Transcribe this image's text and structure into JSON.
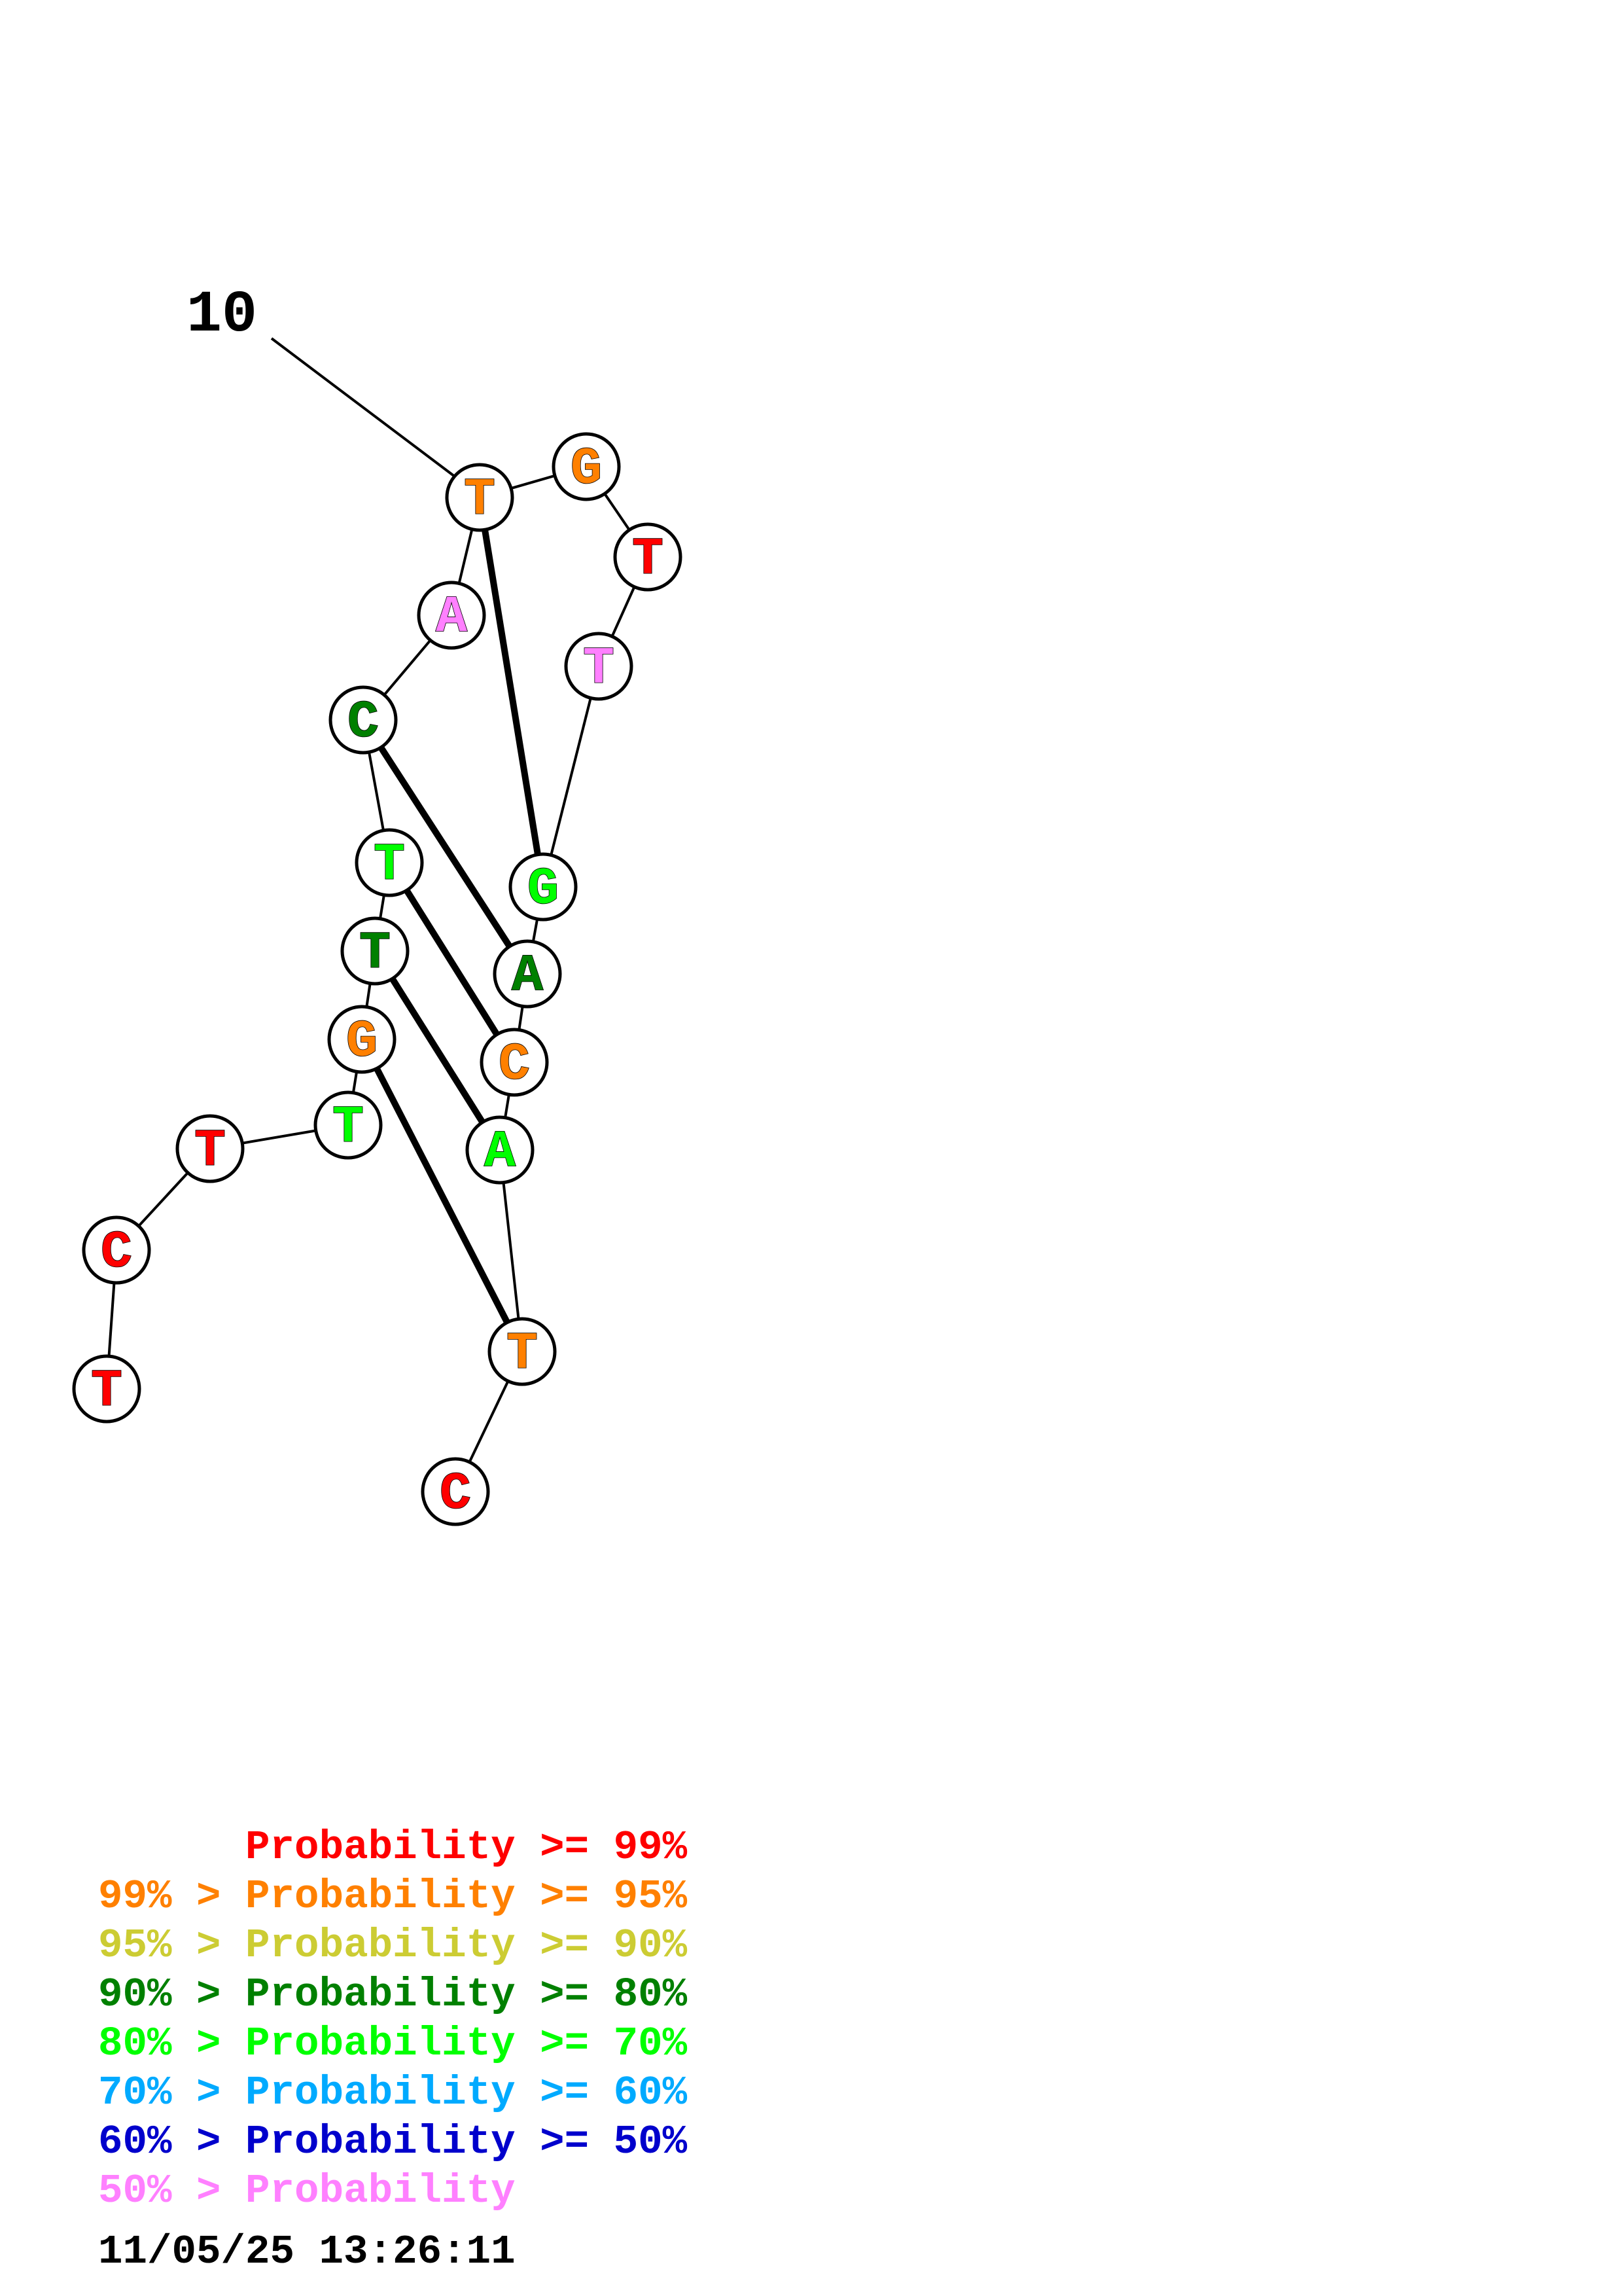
{
  "structure": {
    "index_label": "10",
    "bases": [
      {
        "letter": "T",
        "color": "#ff0000",
        "prob_class": ">=99"
      },
      {
        "letter": "C",
        "color": "#ff0000",
        "prob_class": ">=99"
      },
      {
        "letter": "T",
        "color": "#ff0000",
        "prob_class": ">=99"
      },
      {
        "letter": "T",
        "color": "#00ff00",
        "prob_class": "80-70"
      },
      {
        "letter": "G",
        "color": "#ff8000",
        "prob_class": "99-95"
      },
      {
        "letter": "T",
        "color": "#008000",
        "prob_class": "90-80"
      },
      {
        "letter": "T",
        "color": "#00ff00",
        "prob_class": "80-70"
      },
      {
        "letter": "C",
        "color": "#008000",
        "prob_class": "90-80"
      },
      {
        "letter": "A",
        "color": "#ff80ff",
        "prob_class": "<50"
      },
      {
        "letter": "T",
        "color": "#ff8000",
        "prob_class": "99-95"
      },
      {
        "letter": "G",
        "color": "#ff8000",
        "prob_class": "99-95"
      },
      {
        "letter": "T",
        "color": "#ff0000",
        "prob_class": ">=99"
      },
      {
        "letter": "T",
        "color": "#ff80ff",
        "prob_class": "<50"
      },
      {
        "letter": "G",
        "color": "#00ff00",
        "prob_class": "80-70"
      },
      {
        "letter": "A",
        "color": "#008000",
        "prob_class": "90-80"
      },
      {
        "letter": "C",
        "color": "#ff8000",
        "prob_class": "99-95"
      },
      {
        "letter": "A",
        "color": "#00ff00",
        "prob_class": "80-70"
      },
      {
        "letter": "T",
        "color": "#ff8000",
        "prob_class": "99-95"
      },
      {
        "letter": "C",
        "color": "#ff0000",
        "prob_class": ">=99"
      }
    ],
    "pairs": [
      [
        4,
        17
      ],
      [
        5,
        16
      ],
      [
        6,
        15
      ],
      [
        7,
        14
      ],
      [
        9,
        13
      ]
    ],
    "labeled_base_number": 10
  },
  "legend": {
    "rows": [
      {
        "prefix": "    ",
        "text": "Probability >= 99%",
        "color": "#ff0000"
      },
      {
        "prefix": "99% > ",
        "text": "Probability >= 95%",
        "color": "#ff8000"
      },
      {
        "prefix": "95% > ",
        "text": "Probability >= 90%",
        "color": "#cccc33"
      },
      {
        "prefix": "90% > ",
        "text": "Probability >= 80%",
        "color": "#008000"
      },
      {
        "prefix": "80% > ",
        "text": "Probability >= 70%",
        "color": "#00ff00"
      },
      {
        "prefix": "70% > ",
        "text": "Probability >= 60%",
        "color": "#00aaff"
      },
      {
        "prefix": "60% > ",
        "text": "Probability >= 50%",
        "color": "#0000cc"
      },
      {
        "prefix": "50% > ",
        "text": "Probability",
        "color": "#ff80ff"
      }
    ]
  },
  "timestamp": "11/05/25 13:26:11"
}
